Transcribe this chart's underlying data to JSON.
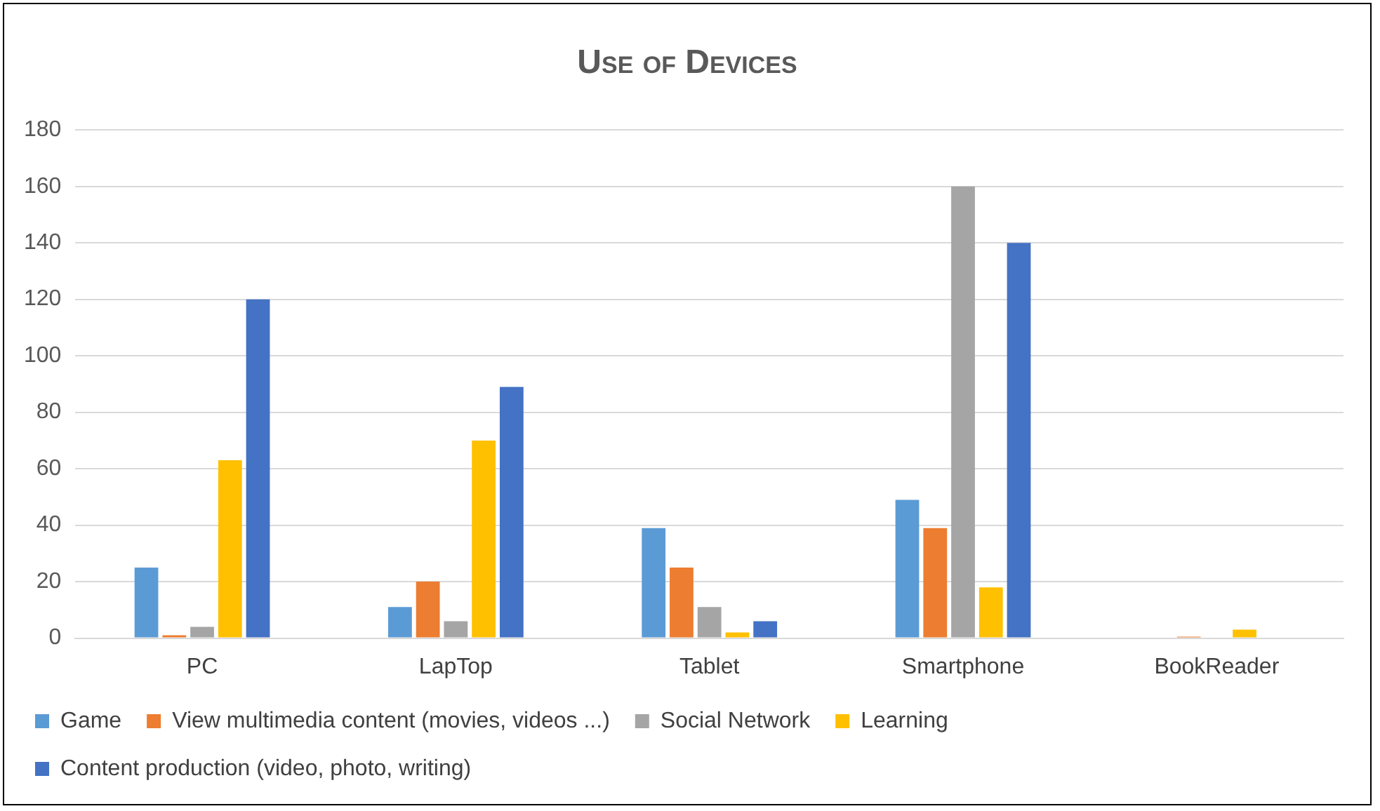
{
  "chart_data": {
    "type": "bar",
    "title": "Use of Devices",
    "categories": [
      "PC",
      "LapTop",
      "Tablet",
      "Smartphone",
      "BookReader"
    ],
    "series": [
      {
        "name": "Game",
        "color": "#5b9bd5",
        "values": [
          25,
          11,
          39,
          49,
          0
        ]
      },
      {
        "name": "View multimedia content (movies, videos ...)",
        "color": "#ed7d31",
        "values": [
          1,
          20,
          25,
          39,
          0.5
        ]
      },
      {
        "name": "Social Network",
        "color": "#a5a5a5",
        "values": [
          4,
          6,
          11,
          160,
          0
        ]
      },
      {
        "name": "Learning",
        "color": "#ffc000",
        "values": [
          63,
          70,
          2,
          18,
          3
        ]
      },
      {
        "name": "Content production (video, photo, writing)",
        "color": "#4472c4",
        "values": [
          120,
          89,
          6,
          140,
          0
        ]
      }
    ],
    "ylim": [
      0,
      180
    ],
    "yticks": [
      0,
      20,
      40,
      60,
      80,
      100,
      120,
      140,
      160,
      180
    ],
    "grid": "y",
    "legend": "bottom"
  }
}
